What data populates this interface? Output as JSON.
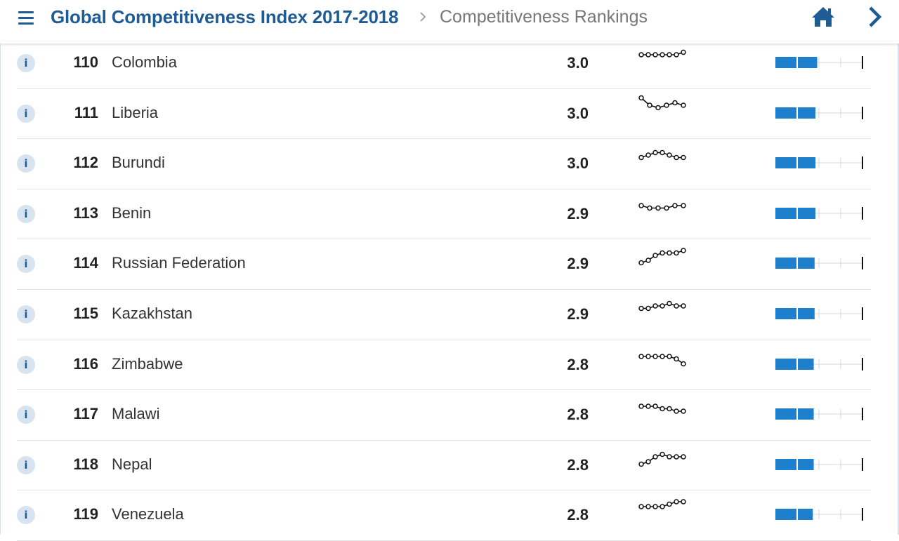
{
  "header": {
    "title": "Global Competitiveness Index 2017-2018",
    "breadcrumb": "Competitiveness Rankings",
    "icons": {
      "menu": "hamburger-menu-icon",
      "separator": "chevron-right-icon",
      "home": "home-icon",
      "next": "chevron-right-icon"
    }
  },
  "colors": {
    "accent": "#1f5c94",
    "bar": "#1e7fcc",
    "info_bg": "#d7e4ef",
    "divider": "#e4e4e4",
    "text": "#333333"
  },
  "rankings": [
    {
      "rank": "110",
      "country": "Colombia",
      "score": "3.0",
      "trend": [
        3.0,
        3.0,
        3.0,
        3.0,
        3.0,
        3.0,
        3.1
      ],
      "bar_fraction": 0.48
    },
    {
      "rank": "111",
      "country": "Liberia",
      "score": "3.0",
      "trend": [
        3.3,
        3.0,
        2.9,
        3.0,
        3.1,
        3.0
      ],
      "bar_fraction": 0.46
    },
    {
      "rank": "112",
      "country": "Burundi",
      "score": "3.0",
      "trend": [
        2.9,
        3.0,
        3.1,
        3.1,
        3.0,
        2.9,
        2.9
      ],
      "bar_fraction": 0.46
    },
    {
      "rank": "113",
      "country": "Benin",
      "score": "2.9",
      "trend": [
        3.0,
        2.9,
        2.9,
        2.9,
        3.0,
        3.0
      ],
      "bar_fraction": 0.46
    },
    {
      "rank": "114",
      "country": "Russian Federation",
      "score": "2.9",
      "trend": [
        2.7,
        2.8,
        3.0,
        3.1,
        3.1,
        3.1,
        3.2
      ],
      "bar_fraction": 0.45
    },
    {
      "rank": "115",
      "country": "Kazakhstan",
      "score": "2.9",
      "trend": [
        2.9,
        2.9,
        3.0,
        3.0,
        3.1,
        3.0,
        3.0
      ],
      "bar_fraction": 0.45
    },
    {
      "rank": "116",
      "country": "Zimbabwe",
      "score": "2.8",
      "trend": [
        3.0,
        3.0,
        3.0,
        3.0,
        3.0,
        2.9,
        2.7
      ],
      "bar_fraction": 0.44
    },
    {
      "rank": "117",
      "country": "Malawi",
      "score": "2.8",
      "trend": [
        3.0,
        3.0,
        3.0,
        2.9,
        2.9,
        2.8,
        2.8
      ],
      "bar_fraction": 0.44
    },
    {
      "rank": "118",
      "country": "Nepal",
      "score": "2.8",
      "trend": [
        2.7,
        2.8,
        3.0,
        3.1,
        3.0,
        3.0,
        3.0
      ],
      "bar_fraction": 0.44
    },
    {
      "rank": "119",
      "country": "Venezuela",
      "score": "2.8",
      "trend": [
        3.0,
        3.0,
        3.0,
        3.0,
        3.1,
        3.2,
        3.2
      ],
      "bar_fraction": 0.43
    }
  ]
}
